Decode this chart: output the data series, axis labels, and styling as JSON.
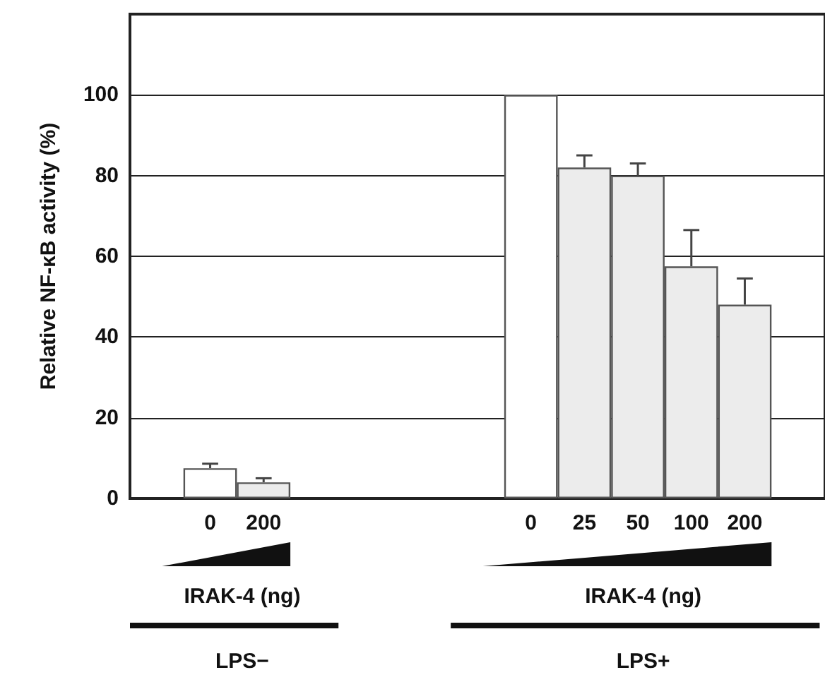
{
  "chart_data": {
    "type": "bar",
    "ylabel": "Relative NF-κB activity (%)",
    "categories": [
      null,
      "0",
      "200",
      null,
      null,
      null,
      null,
      "0",
      "25",
      "50",
      "100",
      "200",
      null
    ],
    "values": [
      null,
      7.5,
      4,
      null,
      null,
      null,
      null,
      100,
      82,
      80,
      57.5,
      48,
      null
    ],
    "colors": [
      "#ffffff",
      "#ffffff",
      "#ececec",
      "#ffffff",
      "#ffffff",
      "#ffffff",
      "#ffffff",
      "#ffffff",
      "#ececec",
      "#ececec",
      "#ececec",
      "#ececec",
      "#ffffff"
    ],
    "errors": [
      null,
      [
        7.5,
        8.6
      ],
      [
        4,
        5
      ],
      null,
      null,
      null,
      null,
      null,
      [
        82,
        85
      ],
      [
        80,
        83
      ],
      [
        57.5,
        66.5
      ],
      [
        48,
        54.5
      ],
      null
    ],
    "ylim": [
      0,
      120
    ],
    "yticks": [
      0,
      20,
      40,
      60,
      80,
      100
    ],
    "grid": "y",
    "annotations": [
      "IRAK-4 (ng)",
      "LPS−",
      "IRAK-4 (ng)",
      "LPS+"
    ]
  }
}
